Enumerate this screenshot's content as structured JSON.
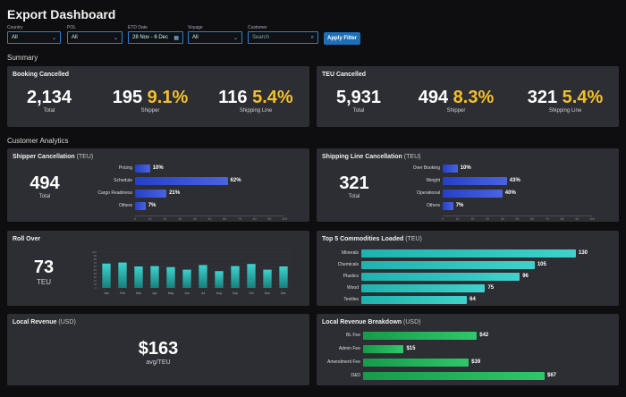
{
  "header": {
    "title": "Export Dashboard"
  },
  "filters": {
    "country": {
      "label": "Country",
      "value": "All"
    },
    "pol": {
      "label": "POL",
      "value": "All"
    },
    "etd": {
      "label": "ETD Date",
      "value": "28 Nov - 6 Dec"
    },
    "voyage": {
      "label": "Voyage",
      "value": "All"
    },
    "customer": {
      "label": "Customer",
      "placeholder": "Search"
    },
    "apply_label": "Apply Filter"
  },
  "sections": {
    "summary": "Summary",
    "analytics": "Customer Analytics"
  },
  "booking_cancelled": {
    "title": "Booking Cancelled",
    "total": "2,134",
    "total_label": "Total",
    "shipper": "195",
    "shipper_pct": "9.1%",
    "shipper_label": "Shipper",
    "line": "116",
    "line_pct": "5.4%",
    "line_label": "Shipping Line"
  },
  "teu_cancelled": {
    "title": "TEU Cancelled",
    "total": "5,931",
    "total_label": "Total",
    "shipper": "494",
    "shipper_pct": "8.3%",
    "shipper_label": "Shipper",
    "line": "321",
    "line_pct": "5.4%",
    "line_label": "Shipping Line"
  },
  "shipper_cancellation": {
    "title": "Shipper Cancellation",
    "unit": "(TEU)",
    "total": "494",
    "total_label": "Total"
  },
  "line_cancellation": {
    "title": "Shipping Line Cancellation",
    "unit": "(TEU)",
    "total": "321",
    "total_label": "Total"
  },
  "roll_over": {
    "title": "Roll Over",
    "value": "73",
    "unit_label": "TEU"
  },
  "commodities": {
    "title": "Top 5 Commodities Loaded",
    "unit": "(TEU)"
  },
  "local_revenue": {
    "title": "Local Revenue",
    "unit": "(USD)",
    "value": "$163",
    "caption": "avg/TEU"
  },
  "revenue_breakdown": {
    "title": "Local Revenue Breakdown",
    "unit": "(USD)"
  },
  "colors": {
    "blue": "#2f4fd8",
    "teal": "#2cc4c0",
    "green": "#22b35a",
    "accent": "#f4c02a"
  },
  "chart_data": [
    {
      "type": "bar",
      "orientation": "horizontal",
      "id": "shipper",
      "categories": [
        "Pricing",
        "Schedule",
        "Cargo Readiness",
        "Others"
      ],
      "values": [
        10,
        62,
        21,
        7
      ],
      "value_labels": [
        "10%",
        "62%",
        "21%",
        "7%"
      ],
      "xlim": [
        0,
        100
      ],
      "ticks": [
        "0",
        "10",
        "20",
        "30",
        "40",
        "50",
        "60",
        "70",
        "80",
        "90",
        "100"
      ]
    },
    {
      "type": "bar",
      "orientation": "horizontal",
      "id": "line",
      "categories": [
        "Over Booking",
        "Weight",
        "Operational",
        "Others"
      ],
      "values": [
        10,
        43,
        40,
        7
      ],
      "value_labels": [
        "10%",
        "43%",
        "40%",
        "7%"
      ],
      "xlim": [
        0,
        100
      ],
      "ticks": [
        "0",
        "10",
        "20",
        "30",
        "40",
        "50",
        "60",
        "70",
        "80",
        "90",
        "100"
      ]
    },
    {
      "type": "bar",
      "orientation": "vertical",
      "id": "rollover",
      "categories": [
        "Jan",
        "Feb",
        "Mar",
        "Apr",
        "May",
        "Jun",
        "Jul",
        "Aug",
        "Sep",
        "Oct",
        "Nov",
        "Dec"
      ],
      "values": [
        68,
        71,
        60,
        61,
        58,
        51,
        64,
        47,
        61,
        67,
        51,
        60
      ],
      "ylim": [
        0,
        100
      ],
      "ticks": [
        "0",
        "10",
        "20",
        "30",
        "40",
        "50",
        "60",
        "70",
        "80",
        "90",
        "100"
      ]
    },
    {
      "type": "bar",
      "orientation": "horizontal",
      "id": "commodities",
      "categories": [
        "Minerals",
        "Chemicals",
        "Plastics",
        "Wood",
        "Textiles"
      ],
      "values": [
        130,
        105,
        96,
        75,
        64
      ],
      "value_labels": [
        "130",
        "105",
        "96",
        "75",
        "64"
      ],
      "xlim": [
        0,
        130
      ]
    },
    {
      "type": "bar",
      "orientation": "horizontal",
      "id": "revenue",
      "categories": [
        "BL Fee",
        "Admin Fee",
        "Amendment Fee",
        "D&D"
      ],
      "values": [
        42,
        15,
        39,
        67
      ],
      "value_labels": [
        "$42",
        "$15",
        "$39",
        "$67"
      ],
      "xlim": [
        0,
        67
      ]
    }
  ]
}
